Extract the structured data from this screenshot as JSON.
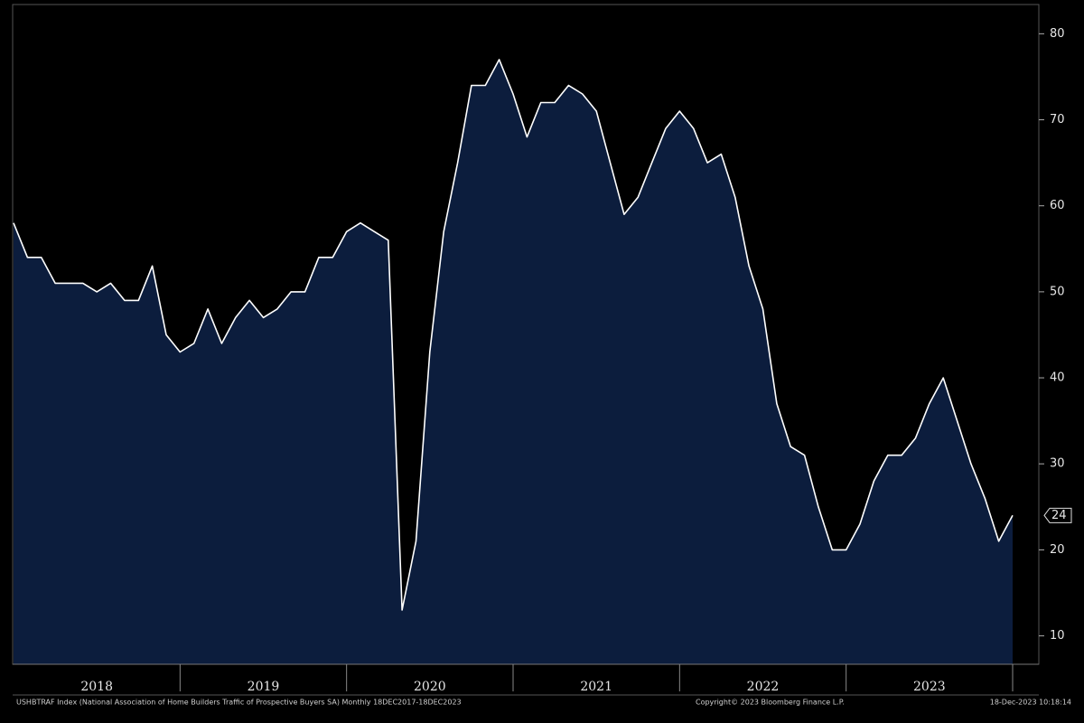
{
  "chart_data": {
    "type": "area",
    "x_axis_labels": [
      "2018",
      "2019",
      "2020",
      "2021",
      "2022",
      "2023"
    ],
    "values": [
      58,
      54,
      54,
      51,
      51,
      51,
      50,
      51,
      49,
      49,
      53,
      45,
      43,
      44,
      48,
      44,
      47,
      49,
      47,
      48,
      50,
      50,
      54,
      54,
      57,
      58,
      57,
      56,
      13,
      21,
      43,
      57,
      65,
      74,
      74,
      77,
      73,
      68,
      72,
      72,
      74,
      73,
      71,
      65,
      59,
      61,
      65,
      69,
      71,
      69,
      65,
      66,
      61,
      53,
      48,
      37,
      32,
      31,
      25,
      20,
      20,
      23,
      28,
      31,
      31,
      33,
      37,
      40,
      35,
      30,
      26,
      21,
      24
    ],
    "line_color": "#ffffff",
    "fill_color": "#0c1d3d",
    "ylim": [
      6.7,
      83.4
    ],
    "yticks": [
      10,
      20,
      30,
      40,
      50,
      60,
      70,
      80
    ],
    "footer_left": "USHBTRAF Index (National Association of Home Builders Traffic of Prospective Buyers SA)  Monthly 18DEC2017-18DEC2023",
    "footer_center": "Copyright© 2023 Bloomberg Finance L.P.",
    "footer_right": "18-Dec-2023 10:18:14"
  }
}
